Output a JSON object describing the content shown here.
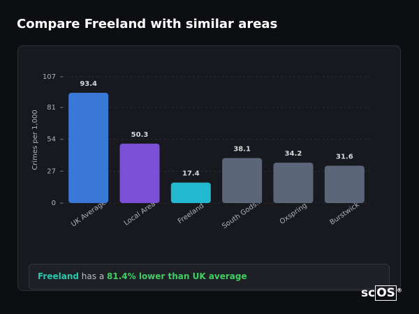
{
  "title": "Compare Freeland with similar areas",
  "chart_data": {
    "type": "bar",
    "y_label": "Crimes per 1,000",
    "categories": [
      "UK Average",
      "Local Area",
      "Freeland",
      "South Gods...",
      "Oxspring",
      "Burstwick"
    ],
    "values": [
      93.4,
      50.3,
      17.4,
      38.1,
      34.2,
      31.6
    ],
    "colors": [
      "#3a78d8",
      "#7b4fd6",
      "#22b8cf",
      "#5b6678",
      "#5b6678",
      "#5b6678"
    ],
    "ylim": [
      0,
      107
    ],
    "yticks": [
      0,
      27,
      54,
      81,
      107
    ],
    "grid": true
  },
  "summary": {
    "area": "Freeland",
    "text": "has a",
    "highlight": "81.4% lower than UK average"
  },
  "logo": {
    "text": "sc",
    "boxed": "OS",
    "mark": "®"
  }
}
